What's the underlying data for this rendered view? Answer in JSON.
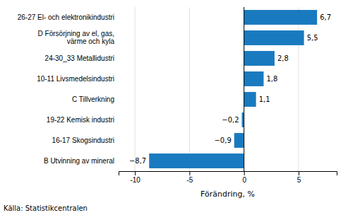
{
  "chart_data": {
    "type": "bar",
    "orientation": "horizontal",
    "categories": [
      "B Utvinning av mineral",
      "16-17 Skogsindustri",
      "19-22 Kemisk industri",
      "C Tillverkning",
      "10-11 Livsmedelsindustri",
      "24-30_33 Metallidustri",
      "D Försörjning av el, gas,\nvärme och kyla",
      "26-27 El- och elektronikindustri"
    ],
    "values": [
      -8.7,
      -0.9,
      -0.2,
      1.1,
      1.8,
      2.8,
      5.5,
      6.7
    ],
    "value_labels": [
      "−8,7",
      "−0,9",
      "−0,2",
      "1,1",
      "1,8",
      "2,8",
      "5,5",
      "6,7"
    ],
    "data_labels": true,
    "color": "#1a7abf",
    "xlabel": "Förändring, %",
    "xlim": [
      -11.5,
      8.5
    ],
    "xticks": [
      -10,
      -5,
      0,
      5
    ],
    "grid": true,
    "annotations": [
      "Källa: Statistikcentralen"
    ]
  }
}
